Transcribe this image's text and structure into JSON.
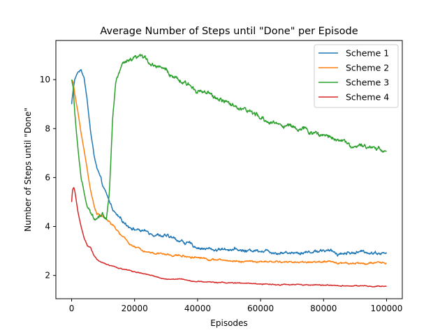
{
  "chart_data": {
    "type": "line",
    "title": "Average Number of Steps until \"Done\" per Episode",
    "xlabel": "Episodes",
    "ylabel": "Number of Steps until \"Done\"",
    "xlim": [
      -5000,
      105000
    ],
    "ylim": [
      1.05,
      11.6
    ],
    "xticks": [
      0,
      20000,
      40000,
      60000,
      80000,
      100000
    ],
    "xtick_labels": [
      "0",
      "20000",
      "40000",
      "60000",
      "80000",
      "100000"
    ],
    "yticks": [
      2,
      4,
      6,
      8,
      10
    ],
    "ytick_labels": [
      "2",
      "4",
      "6",
      "8",
      "10"
    ],
    "grid": false,
    "legend_position": "top-right",
    "series": [
      {
        "name": "Scheme 1",
        "color": "#1f77b4",
        "noise": 0.1,
        "x": [
          0,
          500,
          1000,
          2000,
          3000,
          4000,
          5000,
          6000,
          7000,
          8000,
          10000,
          12000,
          14000,
          16000,
          18000,
          20000,
          25000,
          30000,
          35000,
          40000,
          45000,
          50000,
          55000,
          60000,
          65000,
          70000,
          75000,
          80000,
          85000,
          90000,
          95000,
          100000
        ],
        "y": [
          9.0,
          9.6,
          10.0,
          10.3,
          10.4,
          10.1,
          9.1,
          7.9,
          7.0,
          6.4,
          5.6,
          5.0,
          4.5,
          4.2,
          4.05,
          3.9,
          3.75,
          3.6,
          3.4,
          3.15,
          3.05,
          3.1,
          3.0,
          3.05,
          2.95,
          2.95,
          2.95,
          3.05,
          2.9,
          2.95,
          2.95,
          2.9
        ]
      },
      {
        "name": "Scheme 2",
        "color": "#ff7f0e",
        "noise": 0.06,
        "x": [
          0,
          500,
          1000,
          2000,
          3000,
          4000,
          5000,
          6000,
          7000,
          8000,
          10000,
          12000,
          14000,
          16000,
          18000,
          20000,
          25000,
          30000,
          35000,
          40000,
          45000,
          50000,
          60000,
          70000,
          80000,
          90000,
          100000
        ],
        "y": [
          10.0,
          9.9,
          9.4,
          8.7,
          7.8,
          7.1,
          6.3,
          5.5,
          4.9,
          4.55,
          4.4,
          4.2,
          3.9,
          3.6,
          3.35,
          3.15,
          2.95,
          2.85,
          2.8,
          2.75,
          2.65,
          2.6,
          2.55,
          2.55,
          2.55,
          2.5,
          2.5
        ]
      },
      {
        "name": "Scheme 3",
        "color": "#2ca02c",
        "noise": 0.14,
        "x": [
          0,
          500,
          1000,
          2000,
          3000,
          4000,
          5000,
          6000,
          7000,
          8000,
          9000,
          10000,
          11000,
          12000,
          13000,
          14000,
          16000,
          18000,
          20000,
          22000,
          24000,
          26000,
          28000,
          30000,
          33000,
          36000,
          40000,
          45000,
          50000,
          55000,
          60000,
          65000,
          70000,
          75000,
          80000,
          85000,
          90000,
          95000,
          100000
        ],
        "y": [
          10.0,
          9.7,
          8.6,
          7.2,
          6.0,
          5.3,
          4.8,
          4.5,
          4.35,
          4.4,
          4.5,
          4.5,
          4.3,
          5.5,
          8.5,
          9.9,
          10.6,
          10.7,
          10.8,
          10.9,
          10.8,
          10.6,
          10.6,
          10.4,
          10.0,
          9.8,
          9.6,
          9.3,
          9.0,
          8.8,
          8.4,
          8.2,
          8.1,
          7.9,
          7.7,
          7.6,
          7.2,
          7.3,
          7.1
        ]
      },
      {
        "name": "Scheme 4",
        "color": "#d62728",
        "noise": 0.03,
        "x": [
          0,
          300,
          700,
          1000,
          2000,
          3000,
          4000,
          5000,
          6000,
          7000,
          8000,
          10000,
          12000,
          15000,
          20000,
          25000,
          30000,
          35000,
          40000,
          50000,
          60000,
          70000,
          80000,
          90000,
          95000,
          100000
        ],
        "y": [
          5.0,
          5.5,
          5.6,
          5.45,
          4.6,
          4.0,
          3.5,
          3.2,
          3.15,
          2.85,
          2.65,
          2.5,
          2.4,
          2.3,
          2.15,
          2.0,
          1.85,
          1.85,
          1.75,
          1.7,
          1.65,
          1.62,
          1.6,
          1.58,
          1.55,
          1.55
        ]
      }
    ]
  }
}
